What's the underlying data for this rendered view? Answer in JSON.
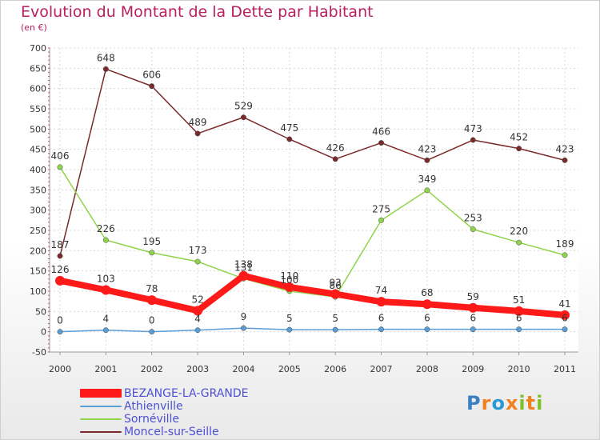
{
  "page": {
    "title": "Evolution du Montant de la Dette par Habitant",
    "unit": "(en €)",
    "logo": {
      "text": "Proxiti",
      "colors": [
        "#3b7fc4",
        "#f08020",
        "#2a9ad6",
        "#f08020",
        "#7fbf2a",
        "#f08020",
        "#7fbf2a"
      ]
    }
  },
  "chart_data": {
    "type": "line",
    "x": [
      "2000",
      "2001",
      "2002",
      "2003",
      "2004",
      "2005",
      "2006",
      "2007",
      "2008",
      "2009",
      "2010",
      "2011"
    ],
    "ylim": [
      -50,
      700
    ],
    "yticks": [
      -50,
      0,
      50,
      100,
      150,
      200,
      250,
      300,
      350,
      400,
      450,
      500,
      550,
      600,
      650,
      700
    ],
    "grid": true,
    "legend_position": "bottom-left",
    "series": [
      {
        "name": "BEZANGE-LA-GRANDE",
        "color": "#ff1a1a",
        "bold": true,
        "values": [
          126,
          103,
          78,
          52,
          138,
          110,
          93,
          74,
          68,
          59,
          51,
          41
        ]
      },
      {
        "name": "Athienville",
        "color": "#5b9ed6",
        "bold": false,
        "values": [
          0,
          4,
          0,
          4,
          9,
          5,
          5,
          6,
          6,
          6,
          6,
          6
        ]
      },
      {
        "name": "Sornéville",
        "color": "#8fd44a",
        "bold": false,
        "values": [
          406,
          226,
          195,
          173,
          131,
          100,
          86,
          275,
          349,
          253,
          220,
          189
        ]
      },
      {
        "name": "Moncel-sur-Seille",
        "color": "#7a2a2a",
        "bold": false,
        "values": [
          187,
          648,
          606,
          489,
          529,
          475,
          426,
          466,
          423,
          473,
          452,
          423
        ]
      }
    ]
  }
}
